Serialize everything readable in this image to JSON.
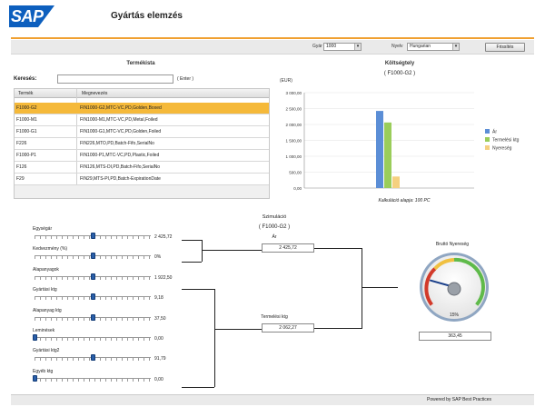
{
  "header": {
    "logo": "SAP",
    "title": "Gyártás elemzés"
  },
  "toolbar": {
    "plant_label": "Gyár",
    "plant_value": "1000",
    "lang_label": "Nyelv",
    "lang_value": "Hungarian",
    "refresh_label": "Frissítés"
  },
  "product_list": {
    "title": "Termékista",
    "search_label": "Keresés:",
    "search_hint": "( Enter )",
    "columns": [
      "Termék",
      "Megnevezés"
    ],
    "rows": [
      {
        "code": "F1000-G2",
        "desc": "FIN1000-G2,MTC-VC,PD,Golden,Boxed"
      },
      {
        "code": "F1000-M1",
        "desc": "FIN1000-M1,MTC-VC,PD,Metal,Foiled"
      },
      {
        "code": "F1000-G1",
        "desc": "FIN1000-G1,MTC-VC,PD,Golden,Foiled"
      },
      {
        "code": "F226",
        "desc": "FIN226,MTO,PD,Batch-Fifo,SerialNo"
      },
      {
        "code": "F1000-P1",
        "desc": "FIN1000-P1,MTC-VC,PD,Plastic,Foiled"
      },
      {
        "code": "F126",
        "desc": "FIN126,MTS-DI,PD,Batch-Fifo,SerialNo"
      },
      {
        "code": "F29",
        "desc": "FIN29,MTS-PI,PD,Batch-ExpirationDate"
      }
    ]
  },
  "cost_chart": {
    "title": "Költségtely",
    "subtitle": "( F1000-G2 )",
    "caption": "Kalkuláció alapja: 100 PC"
  },
  "chart_data": {
    "type": "bar",
    "categories": [
      ""
    ],
    "series": [
      {
        "name": "Ár",
        "values": [
          2425.72
        ],
        "color": "#5b8ed6"
      },
      {
        "name": "Termelési ktg",
        "values": [
          2062.27
        ],
        "color": "#9acd5a"
      },
      {
        "name": "Nyereség",
        "values": [
          363.45
        ],
        "color": "#f5d080"
      }
    ],
    "ylabel": "(EUR)",
    "ylim": [
      0,
      3000
    ],
    "yticks": [
      "0,00",
      "500,00",
      "1 000,00",
      "1 500,00",
      "2 000,00",
      "2 500,00",
      "3 000,00"
    ],
    "legend": "right"
  },
  "sliders": [
    {
      "label": "Egységár",
      "value": "2 425,72",
      "pos": 0.5
    },
    {
      "label": "Kedvezmény (%)",
      "value": "0%",
      "pos": 0.5
    },
    {
      "label": "Alapanyagok",
      "value": "1 922,50",
      "pos": 0.5
    },
    {
      "label": "Gyártási ktg",
      "value": "9,18",
      "pos": 0.5
    },
    {
      "label": "Alapanyag ktg",
      "value": "37,50",
      "pos": 0.5
    },
    {
      "label": "Leminések",
      "value": "0,00",
      "pos": 0.0
    },
    {
      "label": "Gyártási ktg2",
      "value": "91,79",
      "pos": 0.5
    },
    {
      "label": "Egyéb ktg",
      "value": "0,00",
      "pos": 0.0
    }
  ],
  "simulation": {
    "title": "Szimuláció",
    "subtitle": "( F1000-G2 )",
    "price_label": "Ár",
    "price_value": "2 425,72",
    "cost_label": "Termelési ktg",
    "cost_value": "2 062,27"
  },
  "gauge": {
    "title": "Bruttó Nyereség",
    "percent": "15%",
    "percent_value": 15,
    "value": "363,45"
  },
  "footer": {
    "text": "Powered by SAP Best Practices"
  }
}
